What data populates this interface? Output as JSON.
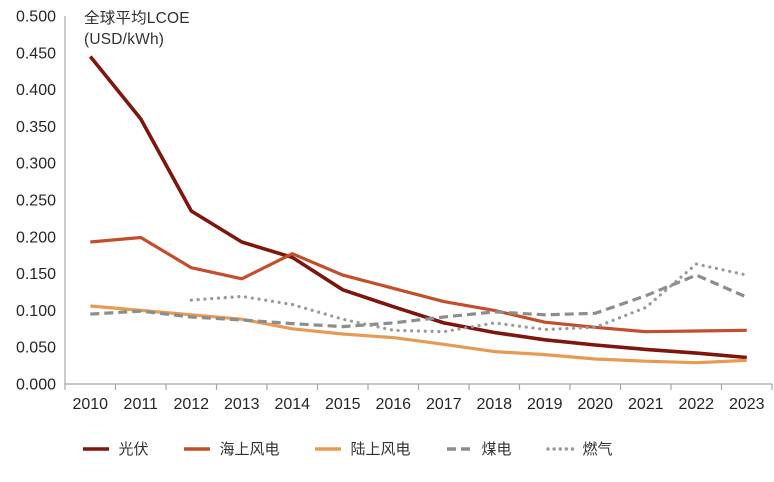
{
  "chart": {
    "title": "全球平均LCOE",
    "unit": "(USD/kWh)"
  },
  "colors": {
    "axis": "#A6A6A6",
    "tick_text": "#262626",
    "title_text": "#323232",
    "background": "#FFFFFF"
  },
  "chart_data": {
    "type": "line",
    "title": "全球平均LCOE (USD/kWh)",
    "xlabel": "",
    "ylabel": "USD/kWh",
    "ylim": [
      0,
      0.5
    ],
    "ytick_step": 0.05,
    "ytick_decimals": 3,
    "grid": false,
    "legend_position": "bottom",
    "categories": [
      "2010",
      "2011",
      "2012",
      "2013",
      "2014",
      "2015",
      "2016",
      "2017",
      "2018",
      "2019",
      "2020",
      "2021",
      "2022",
      "2023"
    ],
    "series": [
      {
        "id": "solar-pv",
        "name": "光伏",
        "color": "#7E160E",
        "style": "solid",
        "values": [
          0.445,
          0.36,
          0.235,
          0.193,
          0.172,
          0.128,
          0.105,
          0.083,
          0.07,
          0.06,
          0.053,
          0.047,
          0.042,
          0.036
        ]
      },
      {
        "id": "offshore-wind",
        "name": "海上风电",
        "color": "#C44D2C",
        "style": "solid",
        "values": [
          0.193,
          0.199,
          0.158,
          0.143,
          0.177,
          0.148,
          0.13,
          0.112,
          0.1,
          0.084,
          0.077,
          0.071,
          0.072,
          0.073
        ]
      },
      {
        "id": "onshore-wind",
        "name": "陆上风电",
        "color": "#E79A53",
        "style": "solid",
        "values": [
          0.106,
          0.1,
          0.094,
          0.088,
          0.075,
          0.068,
          0.063,
          0.054,
          0.044,
          0.04,
          0.034,
          0.031,
          0.029,
          0.032
        ]
      },
      {
        "id": "coal-power",
        "name": "煤电",
        "color": "#8D8D8D",
        "style": "dashed",
        "values": [
          0.095,
          0.099,
          0.091,
          0.087,
          0.082,
          0.078,
          0.083,
          0.091,
          0.098,
          0.094,
          0.096,
          0.12,
          0.148,
          0.118
        ]
      },
      {
        "id": "gas-power",
        "name": "燃气",
        "color": "#9A9A9A",
        "style": "dotted",
        "values": [
          null,
          null,
          0.114,
          0.119,
          0.108,
          0.088,
          0.073,
          0.071,
          0.083,
          0.074,
          0.077,
          0.104,
          0.163,
          0.148
        ]
      }
    ]
  }
}
